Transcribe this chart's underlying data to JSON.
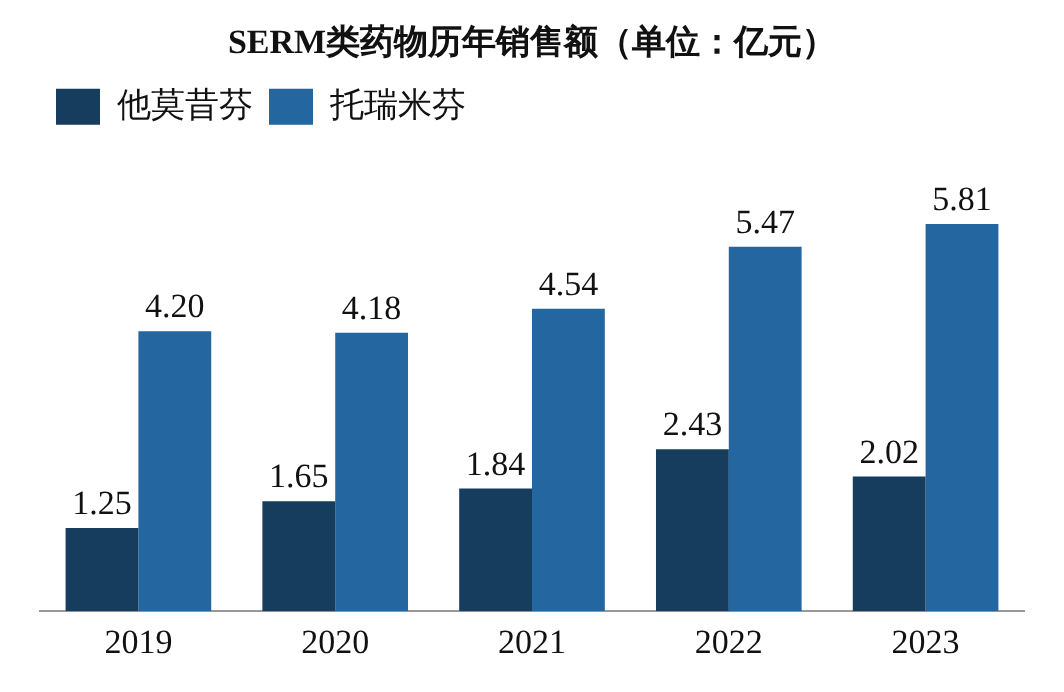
{
  "chart_data": {
    "type": "bar",
    "title": "SERM类药物历年销售额（单位：亿元）",
    "categories": [
      "2019",
      "2020",
      "2021",
      "2022",
      "2023"
    ],
    "series": [
      {
        "name": "他莫昔芬",
        "color": "#173d5e",
        "values": [
          1.25,
          1.65,
          1.84,
          2.43,
          2.02
        ],
        "value_labels": [
          "1.25",
          "1.65",
          "1.84",
          "2.43",
          "2.02"
        ]
      },
      {
        "name": "托瑞米芬",
        "color": "#2366a0",
        "values": [
          4.2,
          4.18,
          4.54,
          5.47,
          5.81
        ],
        "value_labels": [
          "4.20",
          "4.18",
          "4.54",
          "5.47",
          "5.81"
        ]
      }
    ],
    "legend": "top left",
    "grid": false
  }
}
